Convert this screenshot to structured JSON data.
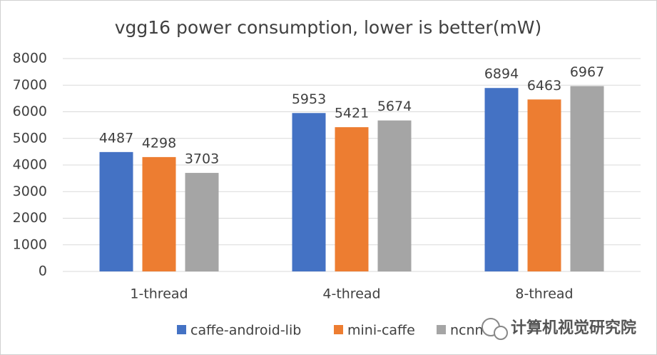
{
  "chart_data": {
    "type": "bar",
    "title": "vgg16 power consumption, lower is better(mW)",
    "categories": [
      "1-thread",
      "4-thread",
      "8-thread"
    ],
    "series": [
      {
        "name": "caffe-android-lib",
        "color": "#4472c4",
        "values": [
          4487,
          5953,
          6894
        ]
      },
      {
        "name": "mini-caffe",
        "color": "#ed7d31",
        "values": [
          4298,
          5421,
          6463
        ]
      },
      {
        "name": "ncnn",
        "color": "#a5a5a5",
        "values": [
          3703,
          5674,
          6967
        ]
      }
    ],
    "ylim": [
      0,
      8000
    ],
    "yticks": [
      0,
      1000,
      2000,
      3000,
      4000,
      5000,
      6000,
      7000,
      8000
    ],
    "grid": true,
    "legend": "bottom",
    "watermark": "计算机视觉研究院"
  }
}
